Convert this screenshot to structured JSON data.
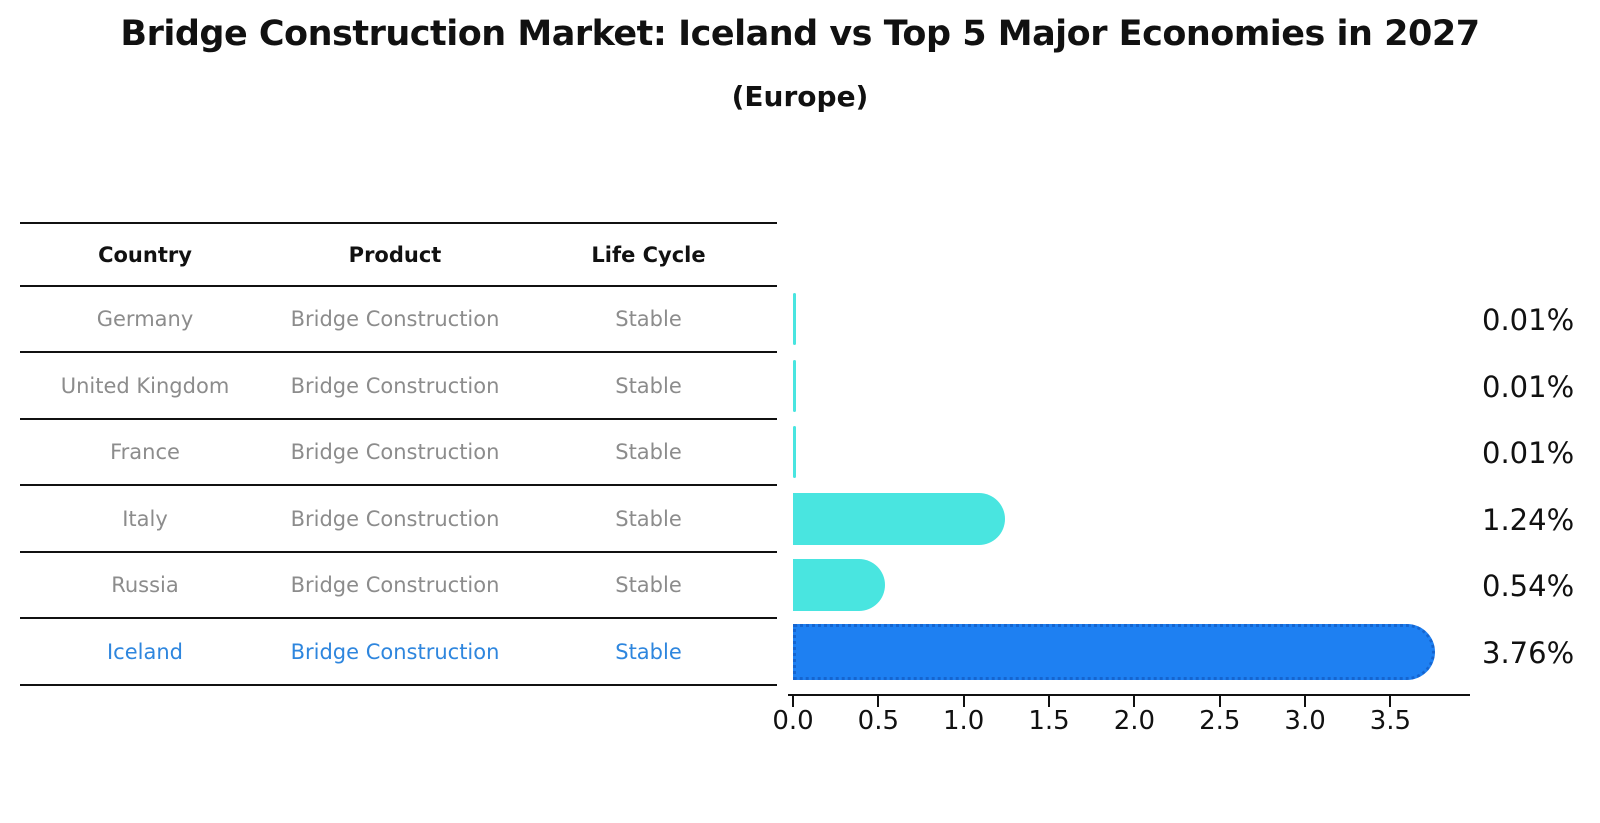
{
  "title": "Bridge Construction Market: Iceland vs Top 5 Major Economies in 2027",
  "subtitle": "(Europe)",
  "table": {
    "headers": [
      "Country",
      "Product",
      "Life Cycle"
    ]
  },
  "chart_data": {
    "type": "bar",
    "orientation": "horizontal",
    "title": "Bridge Construction Market: Iceland vs Top 5 Major Economies in 2027",
    "subtitle": "(Europe)",
    "categories": [
      "Germany",
      "United Kingdom",
      "France",
      "Italy",
      "Russia",
      "Iceland"
    ],
    "values": [
      0.01,
      0.01,
      0.01,
      1.24,
      0.54,
      3.76
    ],
    "rows": [
      {
        "country": "Germany",
        "product": "Bridge Construction",
        "life_cycle": "Stable",
        "value": 0.01,
        "value_label": "0.01%",
        "highlight": false
      },
      {
        "country": "United Kingdom",
        "product": "Bridge Construction",
        "life_cycle": "Stable",
        "value": 0.01,
        "value_label": "0.01%",
        "highlight": false
      },
      {
        "country": "France",
        "product": "Bridge Construction",
        "life_cycle": "Stable",
        "value": 0.01,
        "value_label": "0.01%",
        "highlight": false
      },
      {
        "country": "Italy",
        "product": "Bridge Construction",
        "life_cycle": "Stable",
        "value": 1.24,
        "value_label": "1.24%",
        "highlight": false
      },
      {
        "country": "Russia",
        "product": "Bridge Construction",
        "life_cycle": "Stable",
        "value": 0.54,
        "value_label": "0.54%",
        "highlight": false
      },
      {
        "country": "Iceland",
        "product": "Bridge Construction",
        "life_cycle": "Stable",
        "value": 3.76,
        "value_label": "3.76%",
        "highlight": true
      }
    ],
    "x_ticks": [
      "0.0",
      "0.5",
      "1.0",
      "1.5",
      "2.0",
      "2.5",
      "3.0",
      "3.5"
    ],
    "xlim": [
      0,
      3.97
    ],
    "grid": false,
    "legend": false,
    "colors": {
      "bar_normal": "#49E5E0",
      "bar_highlight": "#1E80F2",
      "bar_highlight_border": "#1565D0",
      "highlight_text": "#2E86DE",
      "table_text": "#8c8c8c",
      "axis_text": "#111111"
    }
  }
}
